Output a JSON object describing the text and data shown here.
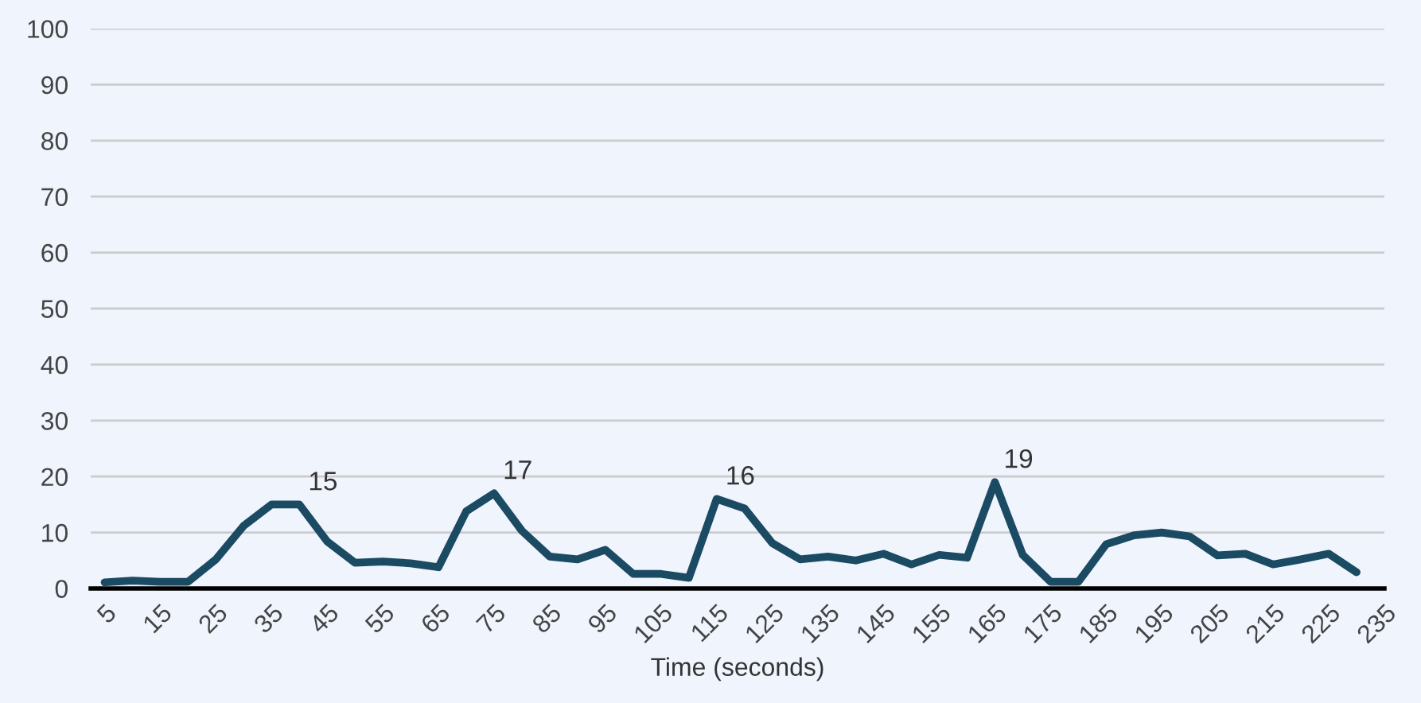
{
  "chart_data": {
    "type": "line",
    "xlabel": "Time (seconds)",
    "x": [
      5,
      10,
      15,
      20,
      25,
      30,
      35,
      40,
      45,
      50,
      55,
      60,
      65,
      70,
      75,
      80,
      85,
      90,
      95,
      100,
      105,
      110,
      115,
      120,
      125,
      130,
      135,
      140,
      145,
      150,
      155,
      160,
      165,
      170,
      175,
      180,
      185,
      190,
      195,
      200,
      205,
      210,
      215,
      220,
      225,
      230
    ],
    "series": [
      {
        "color": "#1b4a63",
        "values": [
          1.1,
          1.4,
          1.2,
          1.2,
          5.2,
          11.2,
          15,
          15,
          8.4,
          4.6,
          4.8,
          4.5,
          3.8,
          13.8,
          17,
          10.3,
          5.7,
          5.2,
          6.9,
          2.6,
          2.6,
          1.9,
          16,
          14.3,
          8.1,
          5.2,
          5.7,
          5,
          6.2,
          4.3,
          6,
          5.5,
          19,
          6,
          1.2,
          1.2,
          7.9,
          9.5,
          10,
          9.3,
          5.9,
          6.2,
          4.3,
          5.2,
          6.2,
          2.9
        ],
        "value_labels": [
          null,
          null,
          null,
          null,
          null,
          null,
          null,
          "15",
          null,
          null,
          null,
          null,
          null,
          null,
          "17",
          null,
          null,
          null,
          null,
          null,
          null,
          null,
          "16",
          null,
          null,
          null,
          null,
          null,
          null,
          null,
          null,
          null,
          "19",
          null,
          null,
          null,
          null,
          null,
          null,
          null,
          null,
          null,
          null,
          null,
          null,
          null
        ]
      }
    ],
    "xlim": [
      2.5,
      235
    ],
    "xticks": [
      5,
      15,
      25,
      35,
      45,
      55,
      65,
      75,
      85,
      95,
      105,
      115,
      125,
      135,
      145,
      155,
      165,
      175,
      185,
      195,
      205,
      215,
      225,
      235
    ],
    "ylim": [
      0,
      100
    ],
    "yticks": [
      0,
      10,
      20,
      30,
      40,
      50,
      60,
      70,
      80,
      90,
      100
    ],
    "grid": "y",
    "marker": "none",
    "line_style": "solid",
    "legend": false
  }
}
